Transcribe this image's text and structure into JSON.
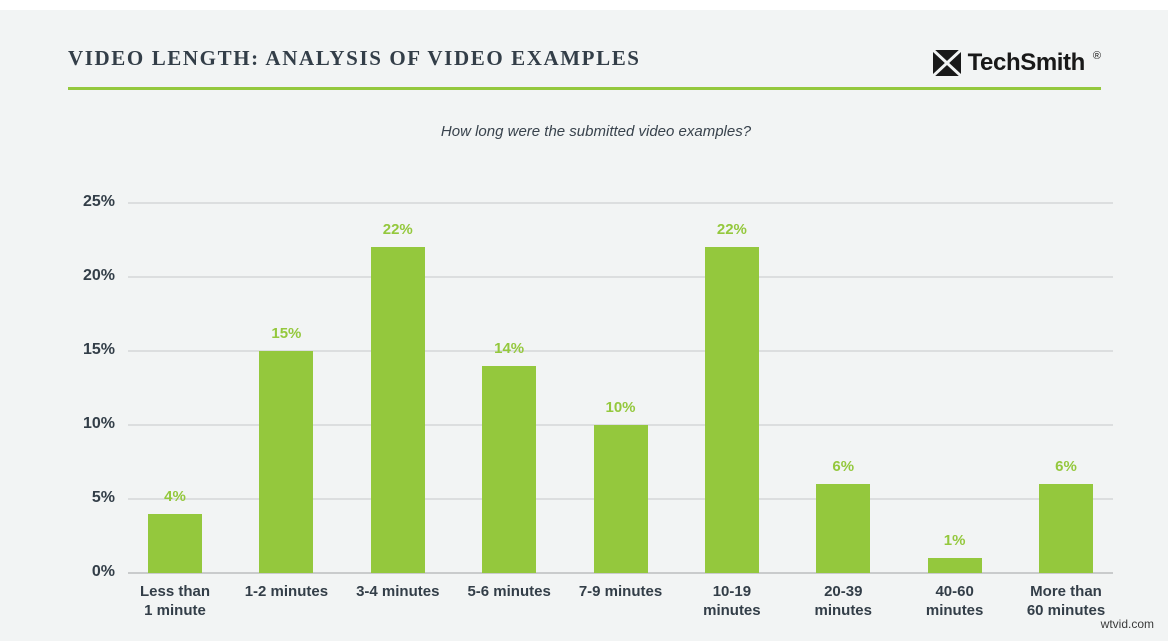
{
  "header": {
    "title": "VIDEO LENGTH: ANALYSIS OF VIDEO EXAMPLES",
    "brand": "TechSmith",
    "registered": "®"
  },
  "chart_data": {
    "type": "bar",
    "title": "How long were the submitted video examples?",
    "categories": [
      "Less than\n1 minute",
      "1-2 minutes",
      "3-4 minutes",
      "5-6 minutes",
      "7-9 minutes",
      "10-19\nminutes",
      "20-39\nminutes",
      "40-60\nminutes",
      "More than\n60 minutes"
    ],
    "values": [
      4,
      15,
      22,
      14,
      10,
      22,
      6,
      1,
      6
    ],
    "value_labels": [
      "4%",
      "15%",
      "22%",
      "14%",
      "10%",
      "22%",
      "6%",
      "1%",
      "6%"
    ],
    "y_tick_values": [
      0,
      5,
      10,
      15,
      20,
      25
    ],
    "y_tick_labels": [
      "0%",
      "5%",
      "10%",
      "15%",
      "20%",
      "25%"
    ],
    "ylim": [
      0,
      25
    ],
    "grid": true,
    "legend": null,
    "bar_color": "#94c83d",
    "value_label_color": "#94c83d",
    "axis_label_color": "#333e48",
    "gridline_color": "#dcdedf",
    "baseline_color": "#c9cbcc"
  },
  "footer": {
    "watermark": "wtvid.com"
  },
  "colors": {
    "background": "#f2f4f4",
    "accent_green": "#94c83d",
    "heading_text": "#333e48",
    "logo_black": "#191919"
  }
}
